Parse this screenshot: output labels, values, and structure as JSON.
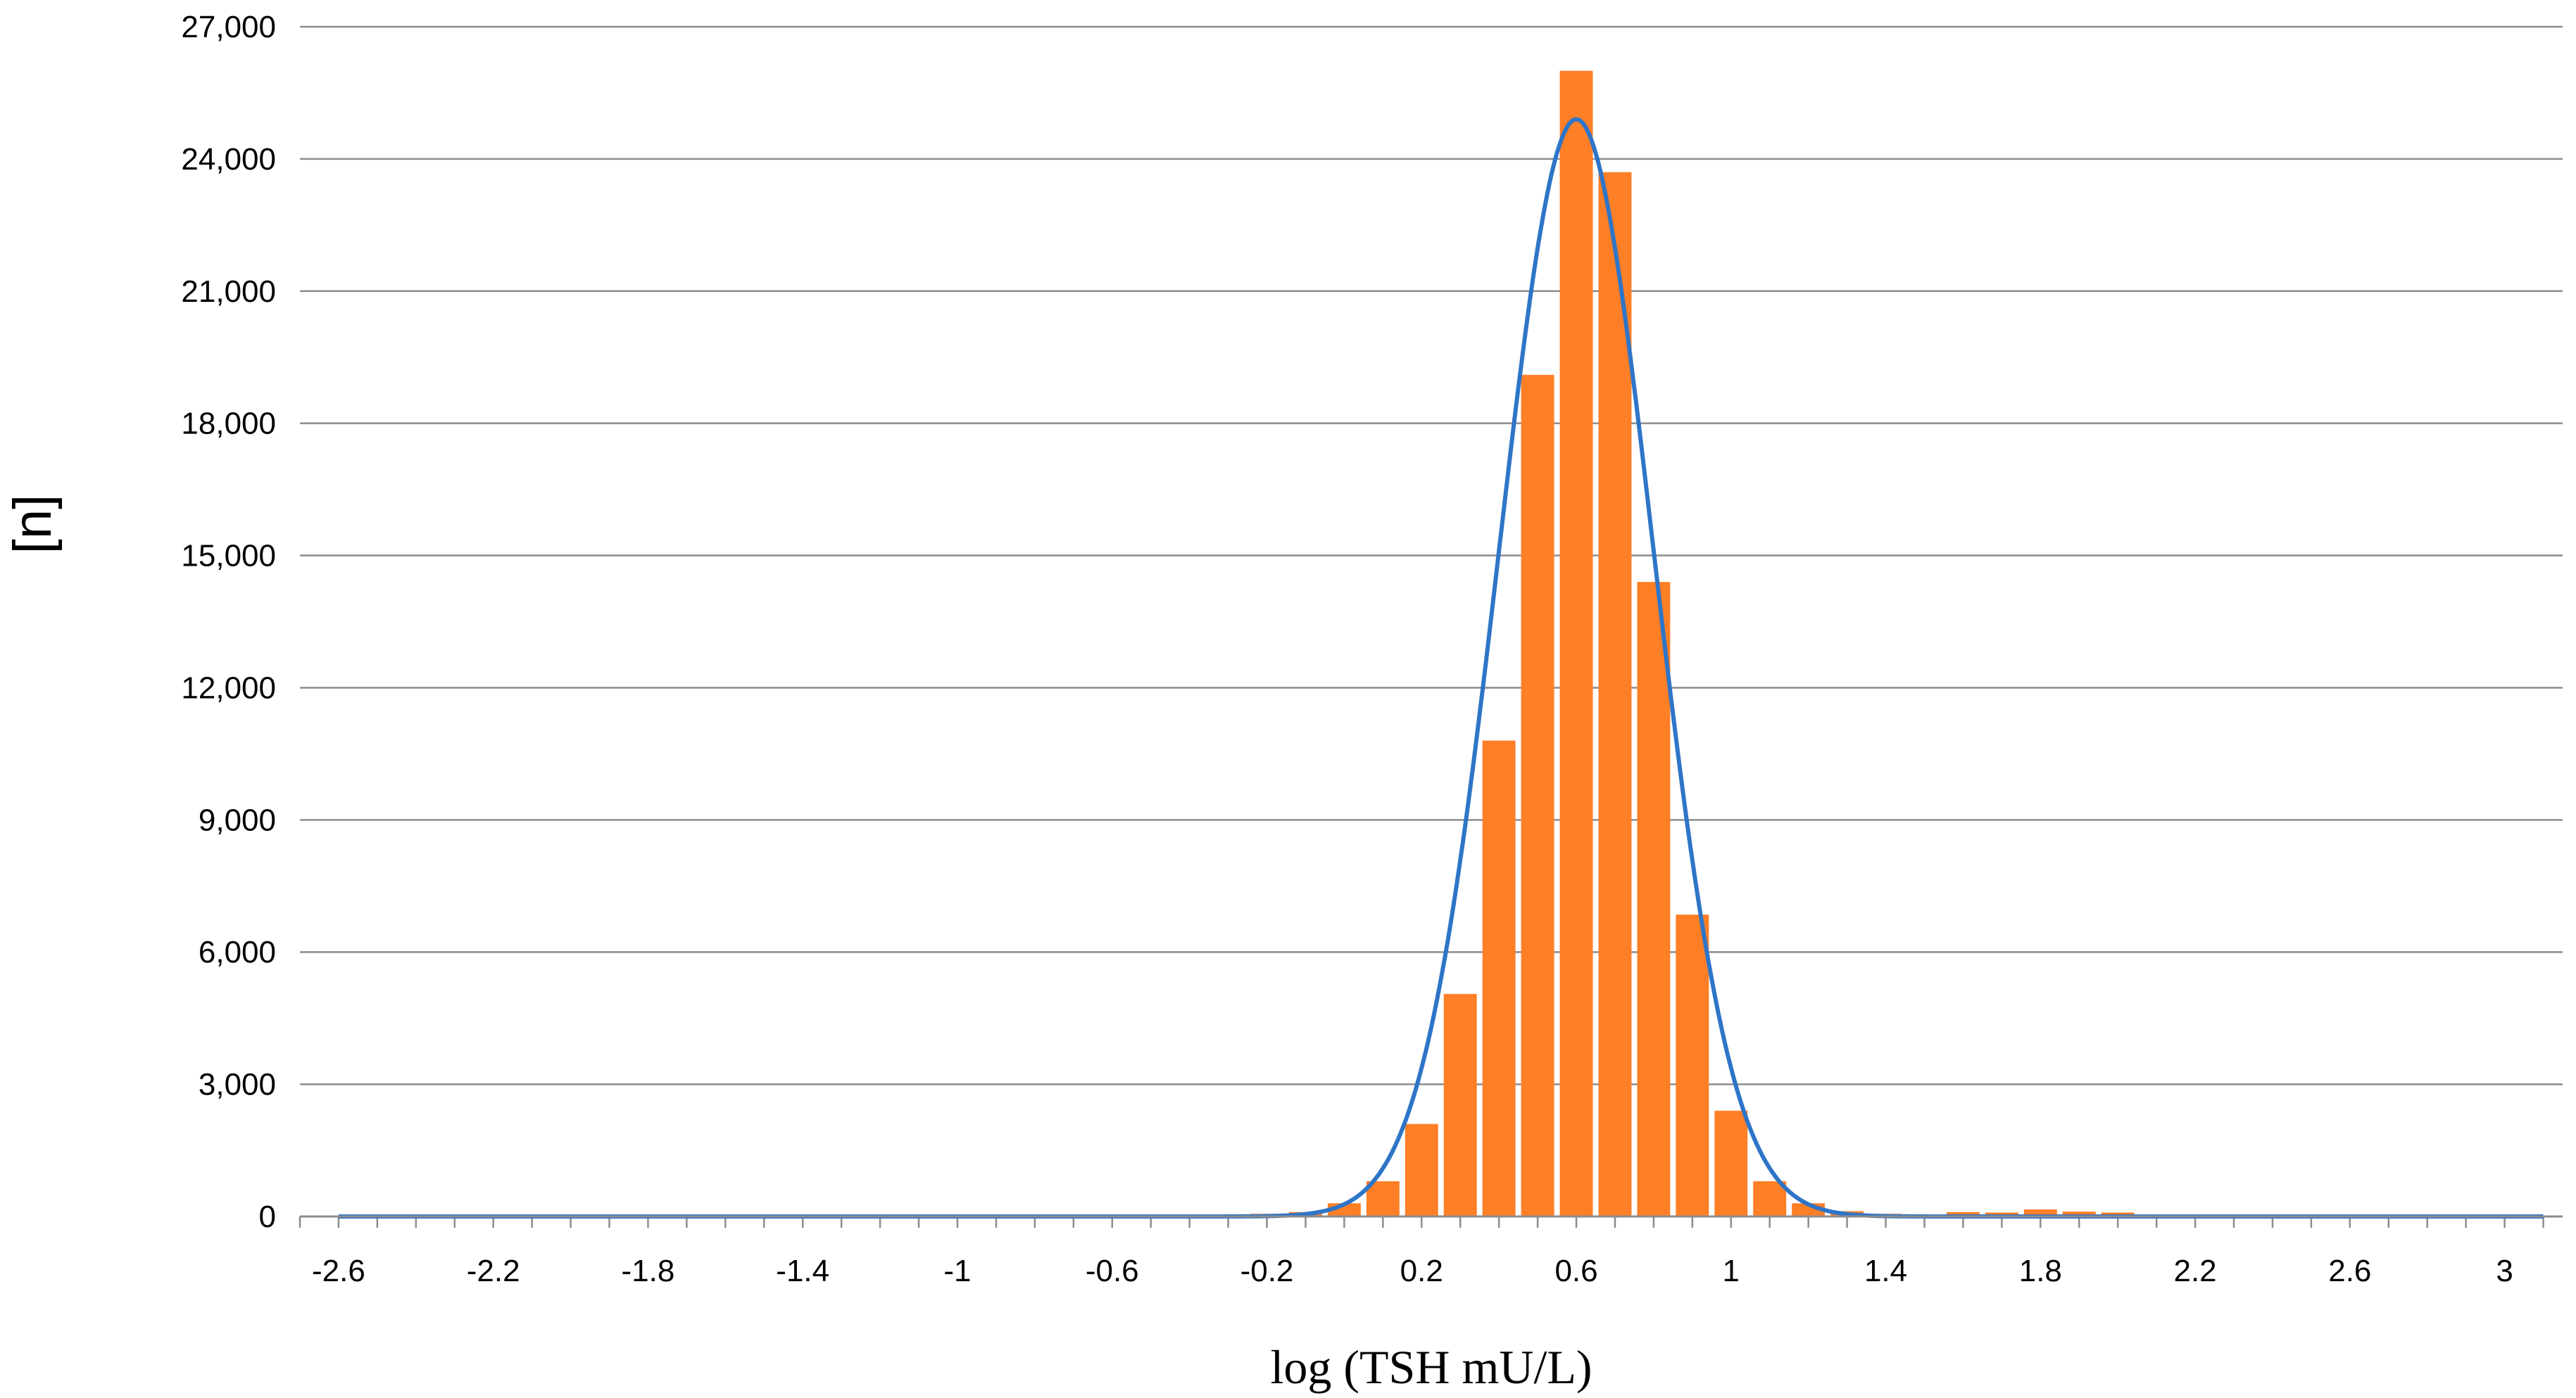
{
  "chart_data": {
    "type": "bar",
    "title": "",
    "xlabel": "log (TSH mU/L)",
    "ylabel": "[n]",
    "xlim": [
      -2.7,
      3.15
    ],
    "ylim": [
      0,
      27000
    ],
    "x_ticks": [
      -2.6,
      -2.2,
      -1.8,
      -1.4,
      -1.0,
      -0.6,
      -0.2,
      0.2,
      0.6,
      1.0,
      1.4,
      1.8,
      2.2,
      2.6,
      3.0
    ],
    "x_tick_labels": [
      "-2.6",
      "-2.2",
      "-1.8",
      "-1.4",
      "-1",
      "-0.6",
      "-0.2",
      "0.2",
      "0.6",
      "1",
      "1.4",
      "1.8",
      "2.2",
      "2.6",
      "3"
    ],
    "y_ticks": [
      0,
      3000,
      6000,
      9000,
      12000,
      15000,
      18000,
      21000,
      24000,
      27000
    ],
    "y_tick_labels": [
      "0",
      "3,000",
      "6,000",
      "9,000",
      "12,000",
      "15,000",
      "18,000",
      "21,000",
      "24,000",
      "27,000"
    ],
    "grid": "horizontal",
    "bin_width": 0.1,
    "series": [
      {
        "type": "bar",
        "color": "#FF7F27",
        "x": [
          -0.2,
          -0.1,
          0.0,
          0.1,
          0.2,
          0.3,
          0.4,
          0.5,
          0.6,
          0.7,
          0.8,
          0.9,
          1.0,
          1.1,
          1.2,
          1.3,
          1.4,
          1.5,
          1.6,
          1.7,
          1.8,
          1.9,
          2.0
        ],
        "values": [
          60,
          100,
          300,
          800,
          2100,
          5050,
          10800,
          19100,
          26000,
          23700,
          14400,
          6850,
          2400,
          800,
          300,
          120,
          60,
          30,
          100,
          90,
          160,
          110,
          90
        ]
      },
      {
        "type": "line",
        "color": "#2E75C8",
        "curve": "normal",
        "mean": 0.6,
        "sd": 0.2,
        "peak": 24900,
        "x_range": [
          -2.6,
          3.1
        ]
      }
    ]
  }
}
